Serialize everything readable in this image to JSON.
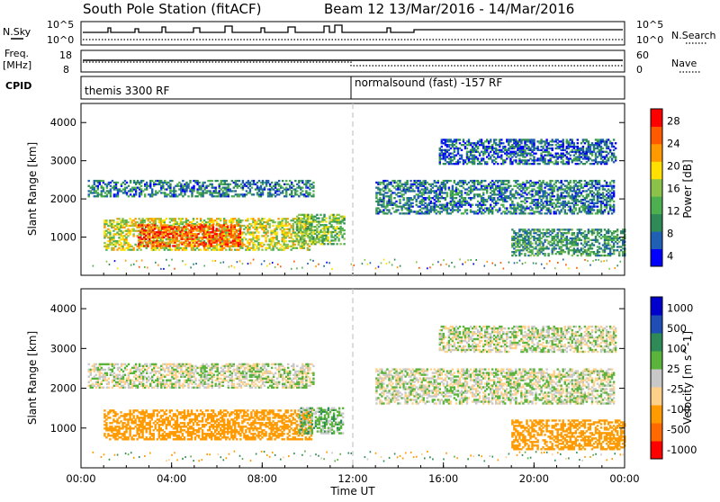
{
  "header": {
    "station": "South Pole Station (fitACF)",
    "beam": "Beam 12",
    "dates": "13/Mar/2016 - 14/Mar/2016"
  },
  "aux_panels": {
    "nsky_label": "N.Sky",
    "nsky_ticks": [
      "10^5",
      "10^0"
    ],
    "nsearch_label": "N.Search",
    "nsearch_ticks": [
      "10^5",
      "10^0"
    ],
    "freq_label": "Freq.",
    "freq_unit": "[MHz]",
    "freq_ticks": [
      "18",
      "8"
    ],
    "nave_label": "Nave",
    "nave_ticks": [
      "60",
      "0"
    ],
    "cpid_label": "CPID",
    "cpid_modes": [
      {
        "label": "themis 3300 RF",
        "start_hour": 0
      },
      {
        "label": "normalsound (fast) -157 RF",
        "start_hour": 12
      }
    ]
  },
  "chart_data": [
    {
      "type": "heatmap",
      "title": "",
      "ylabel": "Slant Range [km]",
      "xlabel": "",
      "xlim": [
        0,
        24
      ],
      "ylim": [
        0,
        4500
      ],
      "yticks": [
        "1000",
        "2000",
        "3000",
        "4000"
      ],
      "colorbar_label": "Power [dB]",
      "colorbar_ticks": [
        "28",
        "24",
        "20",
        "16",
        "12",
        "8",
        "4"
      ],
      "colors": [
        "#0000ff",
        "#1f5fb4",
        "#2e8b57",
        "#4caf50",
        "#8bc34a",
        "#ffe000",
        "#ff9900",
        "#ff5a00",
        "#ff0000"
      ],
      "regions": [
        {
          "x0": 0.3,
          "x1": 10.3,
          "y0": 2050,
          "y1": 2500,
          "value": 8
        },
        {
          "x0": 1.0,
          "x1": 10.2,
          "y0": 650,
          "y1": 1500,
          "value": 18
        },
        {
          "x0": 2.5,
          "x1": 7.0,
          "y0": 750,
          "y1": 1300,
          "value": 27
        },
        {
          "x0": 9.5,
          "x1": 11.6,
          "y0": 800,
          "y1": 1600,
          "value": 14
        },
        {
          "x0": 13.0,
          "x1": 23.5,
          "y0": 1600,
          "y1": 2500,
          "value": 8
        },
        {
          "x0": 15.8,
          "x1": 23.6,
          "y0": 2900,
          "y1": 3550,
          "value": 6
        },
        {
          "x0": 19.0,
          "x1": 24.0,
          "y0": 500,
          "y1": 1200,
          "value": 10
        }
      ]
    },
    {
      "type": "heatmap",
      "title": "",
      "ylabel": "Slant Range [km]",
      "xlabel": "Time UT",
      "xlim": [
        0,
        24
      ],
      "ylim": [
        0,
        4500
      ],
      "xticks": [
        "00:00",
        "04:00",
        "08:00",
        "12:00",
        "16:00",
        "20:00",
        "00:00"
      ],
      "yticks": [
        "1000",
        "2000",
        "3000",
        "4000"
      ],
      "colorbar_label": "Velocity [m s^-1]",
      "colorbar_ticks": [
        "1000",
        "500",
        "100",
        "25",
        "-25",
        "-100",
        "-500",
        "-1000"
      ],
      "colors": [
        "#ff0000",
        "#ff6a00",
        "#ff9a00",
        "#ffd08a",
        "#c8c8c8",
        "#5ab43c",
        "#2e8b57",
        "#1f4fb4",
        "#0000cc"
      ],
      "regions": [
        {
          "x0": 0.3,
          "x1": 10.3,
          "y0": 2000,
          "y1": 2600,
          "value": 0
        },
        {
          "x0": 1.0,
          "x1": 10.2,
          "y0": 700,
          "y1": 1450,
          "value": -300
        },
        {
          "x0": 9.6,
          "x1": 11.6,
          "y0": 850,
          "y1": 1500,
          "value": 60
        },
        {
          "x0": 13.0,
          "x1": 23.5,
          "y0": 1600,
          "y1": 2500,
          "value": 0
        },
        {
          "x0": 15.8,
          "x1": 23.6,
          "y0": 2900,
          "y1": 3550,
          "value": 0
        },
        {
          "x0": 19.0,
          "x1": 24.0,
          "y0": 450,
          "y1": 1200,
          "value": -400
        }
      ]
    }
  ]
}
